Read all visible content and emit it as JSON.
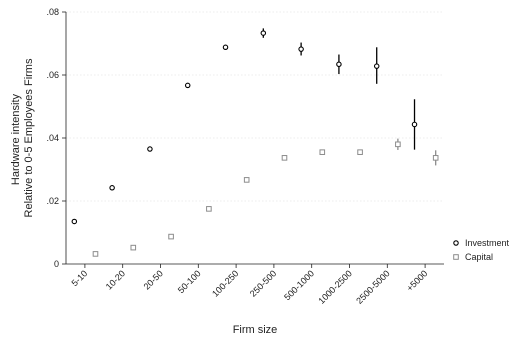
{
  "chart_data": {
    "type": "scatter",
    "title": "",
    "xlabel": "Firm size",
    "ylabel_lines": [
      "Hardware intensity",
      "Relative to 0-5 Employees Firms"
    ],
    "categories": [
      "5-10",
      "10-20",
      "20-50",
      "50-100",
      "100-250",
      "250-500",
      "500-1000",
      "1000-2500",
      "2500-5000",
      "+5000"
    ],
    "ylim": [
      0,
      0.08
    ],
    "yticks": [
      ".08",
      ".06",
      ".04",
      ".02",
      "0"
    ],
    "grid": true,
    "legend_position": "right",
    "series": [
      {
        "name": "Investment",
        "marker": "hollow-circle",
        "color": "#000000",
        "values": [
          0.0135,
          0.0242,
          0.0365,
          0.0567,
          0.0688,
          0.0733,
          0.0682,
          0.0634,
          0.0628,
          0.0443
        ],
        "ci_low": [
          0.013,
          0.0237,
          0.036,
          0.0562,
          0.0683,
          0.0718,
          0.0662,
          0.0603,
          0.0572,
          0.0363
        ],
        "ci_high": [
          0.014,
          0.0247,
          0.037,
          0.0572,
          0.0693,
          0.0748,
          0.0703,
          0.0665,
          0.0688,
          0.0523
        ]
      },
      {
        "name": "Capital",
        "marker": "hollow-square",
        "color": "#8c8c8c",
        "values": [
          0.0032,
          0.0052,
          0.0087,
          0.0175,
          0.0267,
          0.0337,
          0.0355,
          0.0355,
          0.038,
          0.0337
        ],
        "ci_low": [
          0.003,
          0.005,
          0.0085,
          0.0172,
          0.0264,
          0.0333,
          0.0351,
          0.035,
          0.0362,
          0.0313
        ],
        "ci_high": [
          0.0034,
          0.0054,
          0.0089,
          0.0178,
          0.027,
          0.0341,
          0.0359,
          0.036,
          0.0398,
          0.0361
        ]
      }
    ]
  }
}
